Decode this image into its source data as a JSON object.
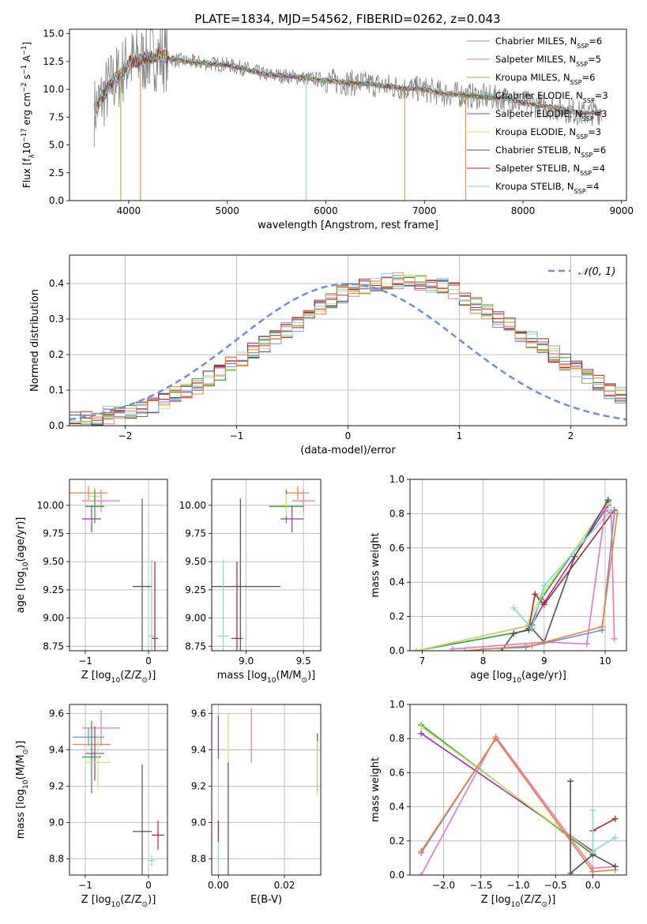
{
  "figure": {
    "title": "PLATE=1834, MJD=54562, FIBERID=0262, z=0.043"
  },
  "palette": {
    "cmiles": "#6a8fd8",
    "smiles": "#e377c2",
    "kmiles": "#c89a2a",
    "celodie": "#2ca02c",
    "selodie": "#9b30b8",
    "kelodie": "#d4e06a",
    "cstelib": "#505050",
    "sstelib": "#b22222",
    "kstelib": "#7fd6dc",
    "orange": "#f08030",
    "grey": "#808080"
  },
  "chart_data": [
    {
      "type": "line",
      "panel": "spectrum",
      "xlabel": "wavelength [Angstrom, rest frame]",
      "ylabel": "Flux [f",
      "ylabel_parts": [
        "Flux [f",
        "λ",
        "10",
        "−17",
        " erg cm",
        "−2",
        " s",
        "−1",
        " A",
        "−1",
        "]"
      ],
      "xlim": [
        3400,
        9050
      ],
      "ylim": [
        0,
        15.4
      ],
      "xticks": [
        4000,
        5000,
        6000,
        7000,
        8000,
        9000
      ],
      "yticks": [
        0.0,
        2.5,
        5.0,
        7.5,
        10.0,
        12.5,
        15.0
      ],
      "ytick_labels": [
        "0.0",
        "2.5",
        "5.0",
        "7.5",
        "10.0",
        "12.5",
        "15.0"
      ],
      "continuum_x": [
        3650,
        3700,
        3800,
        3900,
        4000,
        4100,
        4200,
        4300,
        4500,
        4700,
        5000,
        5200,
        5400,
        5600,
        5800,
        6000,
        6200,
        6400,
        6600,
        6800,
        7000,
        7200,
        7400,
        7600,
        7800,
        8000,
        8200,
        8400,
        8600,
        8800
      ],
      "continuum_y": [
        8.0,
        8.8,
        10.2,
        11.2,
        12.4,
        12.6,
        12.8,
        13.0,
        12.6,
        12.4,
        12.2,
        11.8,
        11.3,
        11.2,
        11.0,
        10.8,
        10.6,
        10.5,
        10.3,
        10.1,
        10.0,
        9.6,
        9.5,
        9.3,
        9.2,
        8.8,
        8.5,
        8.2,
        7.8,
        8.0
      ],
      "grid": false,
      "legend_position": "top-right",
      "series": [
        {
          "name": "Chabrier MILES, N",
          "nssp": "6",
          "color_key": "cmiles"
        },
        {
          "name": "Salpeter MILES, N",
          "nssp": "5",
          "color_key": "smiles"
        },
        {
          "name": "Kroupa MILES, N",
          "nssp": "6",
          "color_key": "kmiles"
        },
        {
          "name": "Chabrier ELODIE, N",
          "nssp": "3",
          "color_key": "celodie"
        },
        {
          "name": "Salpeter ELODIE, N",
          "nssp": "3",
          "color_key": "selodie"
        },
        {
          "name": "Kroupa ELODIE, N",
          "nssp": "3",
          "color_key": "kelodie"
        },
        {
          "name": "Chabrier STELIB, N",
          "nssp": "6",
          "color_key": "cstelib"
        },
        {
          "name": "Salpeter STELIB, N",
          "nssp": "4",
          "color_key": "sstelib"
        },
        {
          "name": "Kroupa STELIB, N",
          "nssp": "4",
          "color_key": "kstelib"
        }
      ],
      "spikes": [
        {
          "x": 3920,
          "color_key": "kmiles"
        },
        {
          "x": 4120,
          "color_key": "orange"
        },
        {
          "x": 5800,
          "color_key": "kstelib"
        },
        {
          "x": 6800,
          "color_key": "kmiles"
        },
        {
          "x": 7420,
          "color_key": "orange"
        }
      ]
    },
    {
      "type": "line",
      "panel": "residuals",
      "xlabel": "(data-model)/error",
      "ylabel": "Normed distribution",
      "xlim": [
        -2.5,
        2.5
      ],
      "ylim": [
        0,
        0.48
      ],
      "xticks": [
        -2,
        -1,
        0,
        1,
        2
      ],
      "xtick_labels": [
        "−2",
        "−1",
        "0",
        "1",
        "2"
      ],
      "yticks": [
        0.0,
        0.1,
        0.2,
        0.3,
        0.4
      ],
      "ytick_labels": [
        "0.0",
        "0.1",
        "0.2",
        "0.3",
        "0.4"
      ],
      "grid": true,
      "legend": "𝒩(0, 1)",
      "legend_position": "top-right",
      "bin_width": 0.1,
      "bins_start": -2.5,
      "base_hist": [
        0.015,
        0.02,
        0.025,
        0.03,
        0.04,
        0.045,
        0.05,
        0.06,
        0.07,
        0.085,
        0.1,
        0.11,
        0.13,
        0.15,
        0.17,
        0.19,
        0.21,
        0.23,
        0.25,
        0.27,
        0.29,
        0.31,
        0.33,
        0.35,
        0.37,
        0.38,
        0.39,
        0.4,
        0.405,
        0.41,
        0.41,
        0.405,
        0.4,
        0.39,
        0.38,
        0.36,
        0.34,
        0.32,
        0.3,
        0.28,
        0.26,
        0.24,
        0.22,
        0.2,
        0.18,
        0.16,
        0.14,
        0.12,
        0.1,
        0.085,
        0.07,
        0.06,
        0.05,
        0.04,
        0.035,
        0.03,
        0.025,
        0.02,
        0.015,
        0.012
      ],
      "hist_colors": [
        "cmiles",
        "smiles",
        "kmiles",
        "celodie",
        "selodie",
        "kelodie",
        "cstelib",
        "sstelib",
        "kstelib",
        "orange"
      ]
    },
    {
      "type": "scatter",
      "panel": "age-vs-Z",
      "xlabel": "Z [log",
      "xlabel_parts": [
        "Z [log",
        "10",
        "(Z/Z",
        "⊙",
        ")]"
      ],
      "ylabel_parts": [
        "age  [log",
        "10",
        "(age/yr)]"
      ],
      "xlim": [
        -1.25,
        0.3
      ],
      "ylim": [
        8.71,
        10.23
      ],
      "xticks": [
        -1,
        0
      ],
      "xtick_labels": [
        "−1",
        "0"
      ],
      "yticks": [
        8.75,
        9.0,
        9.25,
        9.5,
        9.75,
        10.0
      ],
      "ytick_labels": [
        "8.75",
        "9.00",
        "9.25",
        "9.50",
        "9.75",
        "10.00"
      ],
      "grid": true,
      "points": [
        {
          "x": -0.95,
          "y": 10.11,
          "xerr": 0.3,
          "yerr": 0.06,
          "color_key": "orange"
        },
        {
          "x": -0.75,
          "y": 10.04,
          "xerr": 0.3,
          "yerr": 0.1,
          "color_key": "smiles"
        },
        {
          "x": -0.85,
          "y": 10.08,
          "xerr": 0.1,
          "yerr": 0.08,
          "color_key": "kelodie"
        },
        {
          "x": -0.85,
          "y": 9.99,
          "xerr": 0.15,
          "yerr": 0.15,
          "color_key": "celodie"
        },
        {
          "x": -0.9,
          "y": 9.88,
          "xerr": 0.15,
          "yerr": 0.12,
          "color_key": "selodie"
        },
        {
          "x": -0.1,
          "y": 9.28,
          "xerr": 0.15,
          "yerr": 0.78,
          "color_key": "cstelib"
        },
        {
          "x": 0.05,
          "y": 8.84,
          "xerr": 0.05,
          "yerr": 0.68,
          "color_key": "kstelib"
        },
        {
          "x": 0.1,
          "y": 8.82,
          "xerr": 0.05,
          "yerr": 0.68,
          "color_key": "sstelib"
        }
      ]
    },
    {
      "type": "scatter",
      "panel": "age-vs-mass",
      "xlabel_parts": [
        "mass [log",
        "10",
        "(M/M",
        "⊙",
        ")]"
      ],
      "xlim": [
        8.7,
        9.65
      ],
      "ylim": [
        8.71,
        10.23
      ],
      "xticks": [
        9.0,
        9.5
      ],
      "xtick_labels": [
        "9.0",
        "9.5"
      ],
      "yticks": [
        8.75,
        9.0,
        9.25,
        9.5,
        9.75,
        10.0
      ],
      "ytick_labels": [
        "8.75",
        "9.00",
        "9.25",
        "9.50",
        "9.75",
        "10.00"
      ],
      "grid": true,
      "points": [
        {
          "x": 9.45,
          "y": 10.11,
          "xerr": 0.1,
          "yerr": 0.06,
          "color_key": "orange"
        },
        {
          "x": 9.5,
          "y": 10.04,
          "xerr": 0.1,
          "yerr": 0.1,
          "color_key": "smiles"
        },
        {
          "x": 9.35,
          "y": 9.99,
          "xerr": 0.15,
          "yerr": 0.15,
          "color_key": "celodie"
        },
        {
          "x": 9.35,
          "y": 10.0,
          "xerr": 0.05,
          "yerr": 0.1,
          "color_key": "kelodie"
        },
        {
          "x": 9.4,
          "y": 9.88,
          "xerr": 0.1,
          "yerr": 0.12,
          "color_key": "selodie"
        },
        {
          "x": 8.95,
          "y": 9.28,
          "xerr": 0.35,
          "yerr": 0.78,
          "color_key": "cstelib"
        },
        {
          "x": 8.8,
          "y": 8.84,
          "xerr": 0.05,
          "yerr": 0.68,
          "color_key": "kstelib"
        },
        {
          "x": 8.92,
          "y": 8.82,
          "xerr": 0.05,
          "yerr": 0.68,
          "color_key": "sstelib"
        }
      ]
    },
    {
      "type": "line",
      "panel": "mass-weight-vs-age",
      "xlabel_parts": [
        "age  [log",
        "10",
        "(age/yr)]"
      ],
      "ylabel": "mass weight",
      "xlim": [
        6.8,
        10.35
      ],
      "ylim": [
        0,
        1.0
      ],
      "xticks": [
        7,
        8,
        9,
        10
      ],
      "yticks": [
        0.0,
        0.2,
        0.4,
        0.6,
        0.8,
        1.0
      ],
      "ytick_labels": [
        "0.0",
        "0.2",
        "0.4",
        "0.6",
        "0.8",
        "1.0"
      ],
      "grid": true,
      "series": [
        {
          "color_key": "selodie",
          "x": [
            6.9,
            8.8,
            9.0,
            10.05
          ],
          "y": [
            0.0,
            0.15,
            0.28,
            0.85
          ]
        },
        {
          "color_key": "celodie",
          "x": [
            6.9,
            8.75,
            8.95,
            10.05
          ],
          "y": [
            0.0,
            0.12,
            0.3,
            0.87
          ]
        },
        {
          "color_key": "kelodie",
          "x": [
            6.9,
            8.7,
            8.95,
            10.05
          ],
          "y": [
            0.0,
            0.14,
            0.32,
            0.86
          ]
        },
        {
          "color_key": "cstelib",
          "x": [
            8.3,
            8.5,
            8.8,
            9.0,
            9.5,
            10.05
          ],
          "y": [
            0.0,
            0.1,
            0.13,
            0.05,
            0.55,
            0.88
          ]
        },
        {
          "color_key": "sstelib",
          "x": [
            8.75,
            8.85,
            9.0,
            10.15
          ],
          "y": [
            0.13,
            0.33,
            0.27,
            0.82
          ]
        },
        {
          "color_key": "kstelib",
          "x": [
            8.5,
            8.8,
            9.0,
            10.1
          ],
          "y": [
            0.25,
            0.13,
            0.38,
            0.82
          ]
        },
        {
          "color_key": "smiles",
          "x": [
            7.5,
            9.0,
            9.7,
            10.0,
            10.1,
            10.15
          ],
          "y": [
            0.01,
            0.05,
            0.04,
            0.82,
            0.8,
            0.07
          ]
        },
        {
          "color_key": "cmiles",
          "x": [
            8.0,
            8.7,
            9.95,
            10.15
          ],
          "y": [
            0.01,
            0.02,
            0.12,
            0.8
          ]
        },
        {
          "color_key": "orange",
          "x": [
            7.7,
            8.8,
            9.95,
            10.2
          ],
          "y": [
            0.0,
            0.03,
            0.14,
            0.8
          ]
        }
      ]
    },
    {
      "type": "scatter",
      "panel": "mass-vs-Z",
      "xlabel_parts": [
        "Z [log",
        "10",
        "(Z/Z",
        "⊙",
        ")]"
      ],
      "ylabel_parts": [
        "mass [log",
        "10",
        "(M/M",
        "⊙",
        ")]"
      ],
      "xlim": [
        -1.25,
        0.3
      ],
      "ylim": [
        8.71,
        9.65
      ],
      "xticks": [
        -1,
        0
      ],
      "xtick_labels": [
        "−1",
        "0"
      ],
      "yticks": [
        8.8,
        9.0,
        9.2,
        9.4,
        9.6
      ],
      "ytick_labels": [
        "8.8",
        "9.0",
        "9.2",
        "9.4",
        "9.6"
      ],
      "grid": true,
      "points": [
        {
          "x": -0.75,
          "y": 9.52,
          "xerr": 0.3,
          "yerr": 0.1,
          "color_key": "smiles"
        },
        {
          "x": -0.95,
          "y": 9.47,
          "xerr": 0.25,
          "yerr": 0.05,
          "color_key": "cmiles"
        },
        {
          "x": -0.9,
          "y": 9.43,
          "xerr": 0.3,
          "yerr": 0.1,
          "color_key": "orange"
        },
        {
          "x": -0.85,
          "y": 9.38,
          "xerr": 0.15,
          "yerr": 0.15,
          "color_key": "selodie"
        },
        {
          "x": -0.9,
          "y": 9.36,
          "xerr": 0.15,
          "yerr": 0.2,
          "color_key": "celodie"
        },
        {
          "x": -0.8,
          "y": 9.33,
          "xerr": 0.2,
          "yerr": 0.15,
          "color_key": "kelodie"
        },
        {
          "x": -0.1,
          "y": 8.95,
          "xerr": 0.15,
          "yerr": 0.37,
          "color_key": "cstelib"
        },
        {
          "x": 0.15,
          "y": 8.93,
          "xerr": 0.1,
          "yerr": 0.08,
          "color_key": "sstelib"
        },
        {
          "x": 0.05,
          "y": 8.79,
          "xerr": 0.05,
          "yerr": 0.03,
          "color_key": "kstelib"
        }
      ]
    },
    {
      "type": "scatter",
      "panel": "mass-vs-EBV",
      "xlabel": "E(B-V)",
      "xlim": [
        -0.002,
        0.031
      ],
      "ylim": [
        8.71,
        9.65
      ],
      "xticks": [
        0.0,
        0.02
      ],
      "xtick_labels": [
        "0.00",
        "0.02"
      ],
      "yticks": [
        8.8,
        9.0,
        9.2,
        9.4,
        9.6
      ],
      "ytick_labels": [
        "8.8",
        "9.0",
        "9.2",
        "9.4",
        "9.6"
      ],
      "grid": true,
      "points": [
        {
          "x": 0.0,
          "y": 9.47,
          "yerr": 0.12,
          "color_key": "selodie"
        },
        {
          "x": 0.0,
          "y": 8.95,
          "yerr": 0.06,
          "color_key": "sstelib"
        },
        {
          "x": 0.0,
          "y": 8.8,
          "yerr": 0.08,
          "color_key": "kstelib"
        },
        {
          "x": 0.003,
          "y": 9.52,
          "yerr": 0.08,
          "color_key": "smiles"
        },
        {
          "x": 0.003,
          "y": 9.4,
          "yerr": 0.2,
          "color_key": "kelodie"
        },
        {
          "x": 0.003,
          "y": 8.96,
          "yerr": 0.37,
          "color_key": "cstelib"
        },
        {
          "x": 0.01,
          "y": 9.48,
          "yerr": 0.15,
          "color_key": "smiles"
        },
        {
          "x": 0.03,
          "y": 9.33,
          "yerr": 0.16,
          "color_key": "cstelib"
        },
        {
          "x": 0.03,
          "y": 9.3,
          "yerr": 0.15,
          "color_key": "kelodie"
        }
      ]
    },
    {
      "type": "line",
      "panel": "mass-weight-vs-Z",
      "xlabel_parts": [
        "Z [log",
        "10",
        "(Z/Z",
        "⊙",
        ")]"
      ],
      "ylabel": "mass weight",
      "xlim": [
        -2.45,
        0.45
      ],
      "ylim": [
        0,
        1.0
      ],
      "xticks": [
        -2.0,
        -1.5,
        -1.0,
        -0.5,
        0.0
      ],
      "xtick_labels": [
        "−2.0",
        "−1.5",
        "−1.0",
        "−0.5",
        "0.0"
      ],
      "yticks": [
        0.0,
        0.2,
        0.4,
        0.6,
        0.8,
        1.0
      ],
      "ytick_labels": [
        "0.0",
        "0.2",
        "0.4",
        "0.6",
        "0.8",
        "1.0"
      ],
      "grid": true,
      "series": [
        {
          "color_key": "selodie",
          "x": [
            -2.3,
            0.0
          ],
          "y": [
            0.83,
            0.14
          ]
        },
        {
          "color_key": "celodie",
          "x": [
            -2.3,
            0.0
          ],
          "y": [
            0.88,
            0.12
          ]
        },
        {
          "color_key": "kelodie",
          "x": [
            -2.3,
            0.0
          ],
          "y": [
            0.87,
            0.13
          ]
        },
        {
          "color_key": "smiles",
          "x": [
            -2.3,
            -1.3,
            0.0,
            0.3
          ],
          "y": [
            0.0,
            0.81,
            0.04,
            0.05
          ]
        },
        {
          "color_key": "cmiles",
          "x": [
            -2.3,
            -1.3,
            0.0
          ],
          "y": [
            0.13,
            0.8,
            0.02
          ]
        },
        {
          "color_key": "orange",
          "x": [
            -2.3,
            -1.3,
            0.0,
            0.3
          ],
          "y": [
            0.14,
            0.8,
            0.02,
            0.03
          ]
        },
        {
          "color_key": "cstelib",
          "x": [
            -0.3,
            -0.3,
            0.0,
            0.3
          ],
          "y": [
            0.55,
            0.01,
            0.12,
            0.05
          ]
        },
        {
          "color_key": "sstelib",
          "x": [
            0.0,
            0.3
          ],
          "y": [
            0.26,
            0.33
          ]
        },
        {
          "color_key": "kstelib",
          "x": [
            0.0,
            0.0,
            0.3
          ],
          "y": [
            0.38,
            0.14,
            0.22
          ]
        }
      ]
    }
  ]
}
